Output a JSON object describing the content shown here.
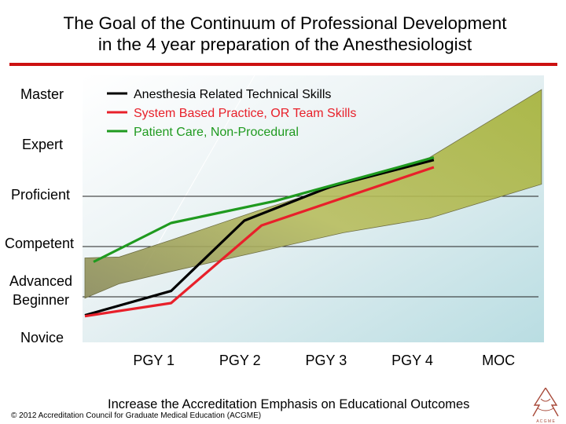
{
  "slide": {
    "title": "The Goal of the Continuum of Professional Development\nin the 4 year preparation of the Anesthesiologist",
    "footer": "Increase the Accreditation Emphasis on Educational Outcomes",
    "copyright": "© 2012 Accreditation Council for Graduate Medical Education (ACGME)",
    "logo_text": "ACGME",
    "rule_color": "#cc1111"
  },
  "chart_data": {
    "type": "line",
    "y_levels": [
      "Novice",
      "Advanced\nBeginner",
      "Competent",
      "Proficient",
      "Expert",
      "Master"
    ],
    "x_labels": [
      "PGY 1",
      "PGY 2",
      "PGY 3",
      "PGY 4",
      "MOC"
    ],
    "xlim": [
      0,
      5
    ],
    "ylim": [
      0,
      5.3
    ],
    "legend_position": "top-left",
    "band": {
      "upper": [
        [
          0,
          1.48
        ],
        [
          0.4,
          1.5
        ],
        [
          1,
          1.85
        ],
        [
          2,
          2.45
        ],
        [
          3,
          3.0
        ],
        [
          4,
          3.55
        ],
        [
          5.3,
          4.95
        ]
      ],
      "lower": [
        [
          0,
          0.65
        ],
        [
          0.4,
          0.95
        ],
        [
          1,
          1.2
        ],
        [
          2,
          1.6
        ],
        [
          3,
          2.0
        ],
        [
          4,
          2.3
        ],
        [
          5.3,
          3.0
        ]
      ]
    },
    "series": [
      {
        "name": "Anesthesia Related Technical Skills",
        "color": "#000000",
        "points": [
          [
            0,
            0.3
          ],
          [
            1,
            0.8
          ],
          [
            1.85,
            2.25
          ],
          [
            2.85,
            2.95
          ],
          [
            4.05,
            3.5
          ]
        ]
      },
      {
        "name": "System Based Practice, OR Team Skills",
        "color": "#e8202a",
        "points": [
          [
            0,
            0.28
          ],
          [
            1,
            0.55
          ],
          [
            2.05,
            2.15
          ],
          [
            4.05,
            3.35
          ]
        ]
      },
      {
        "name": "Patient Care, Non-Procedural",
        "color": "#1f9a1f",
        "points": [
          [
            0.1,
            1.4
          ],
          [
            1,
            2.2
          ],
          [
            2.2,
            2.65
          ],
          [
            4.05,
            3.55
          ]
        ]
      }
    ]
  }
}
